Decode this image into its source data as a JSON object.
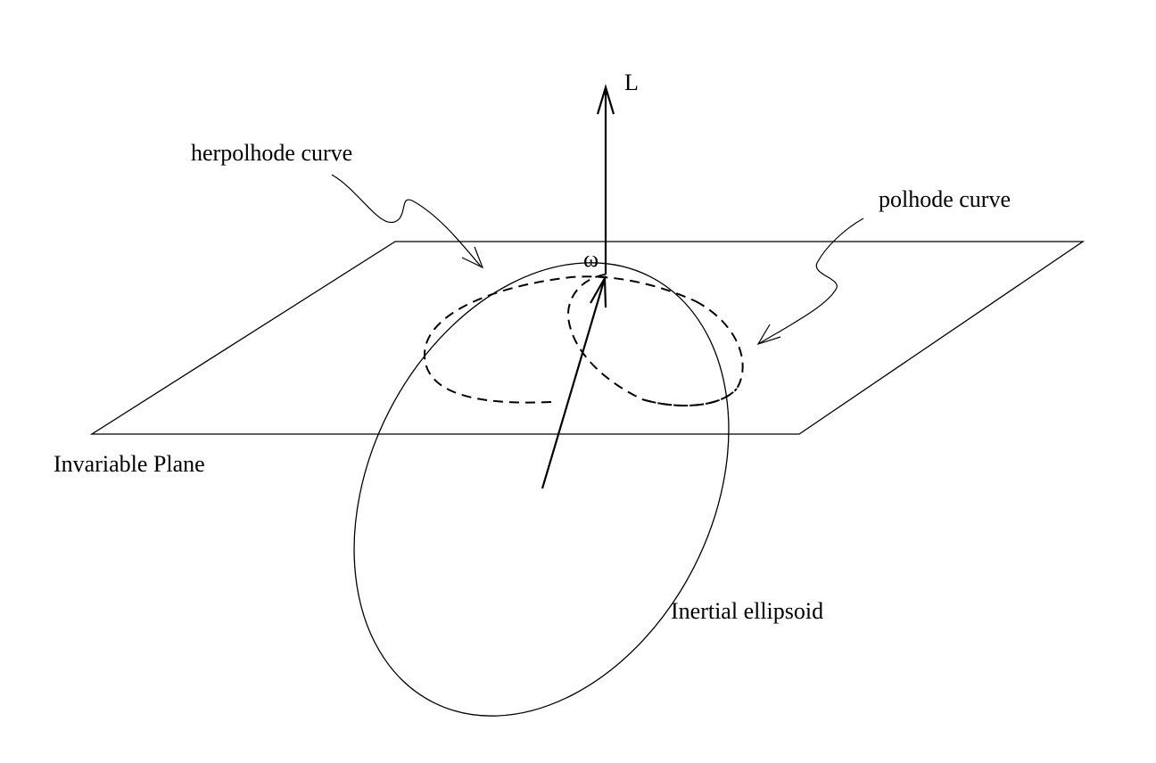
{
  "labels": {
    "angular_momentum": "L",
    "angular_velocity": "ω",
    "herpolhode": "herpolhode curve",
    "polhode": "polhode curve",
    "plane": "Invariable Plane",
    "ellipsoid": "Inertial ellipsoid"
  },
  "colors": {
    "ink": "#000000",
    "background": "#ffffff"
  }
}
